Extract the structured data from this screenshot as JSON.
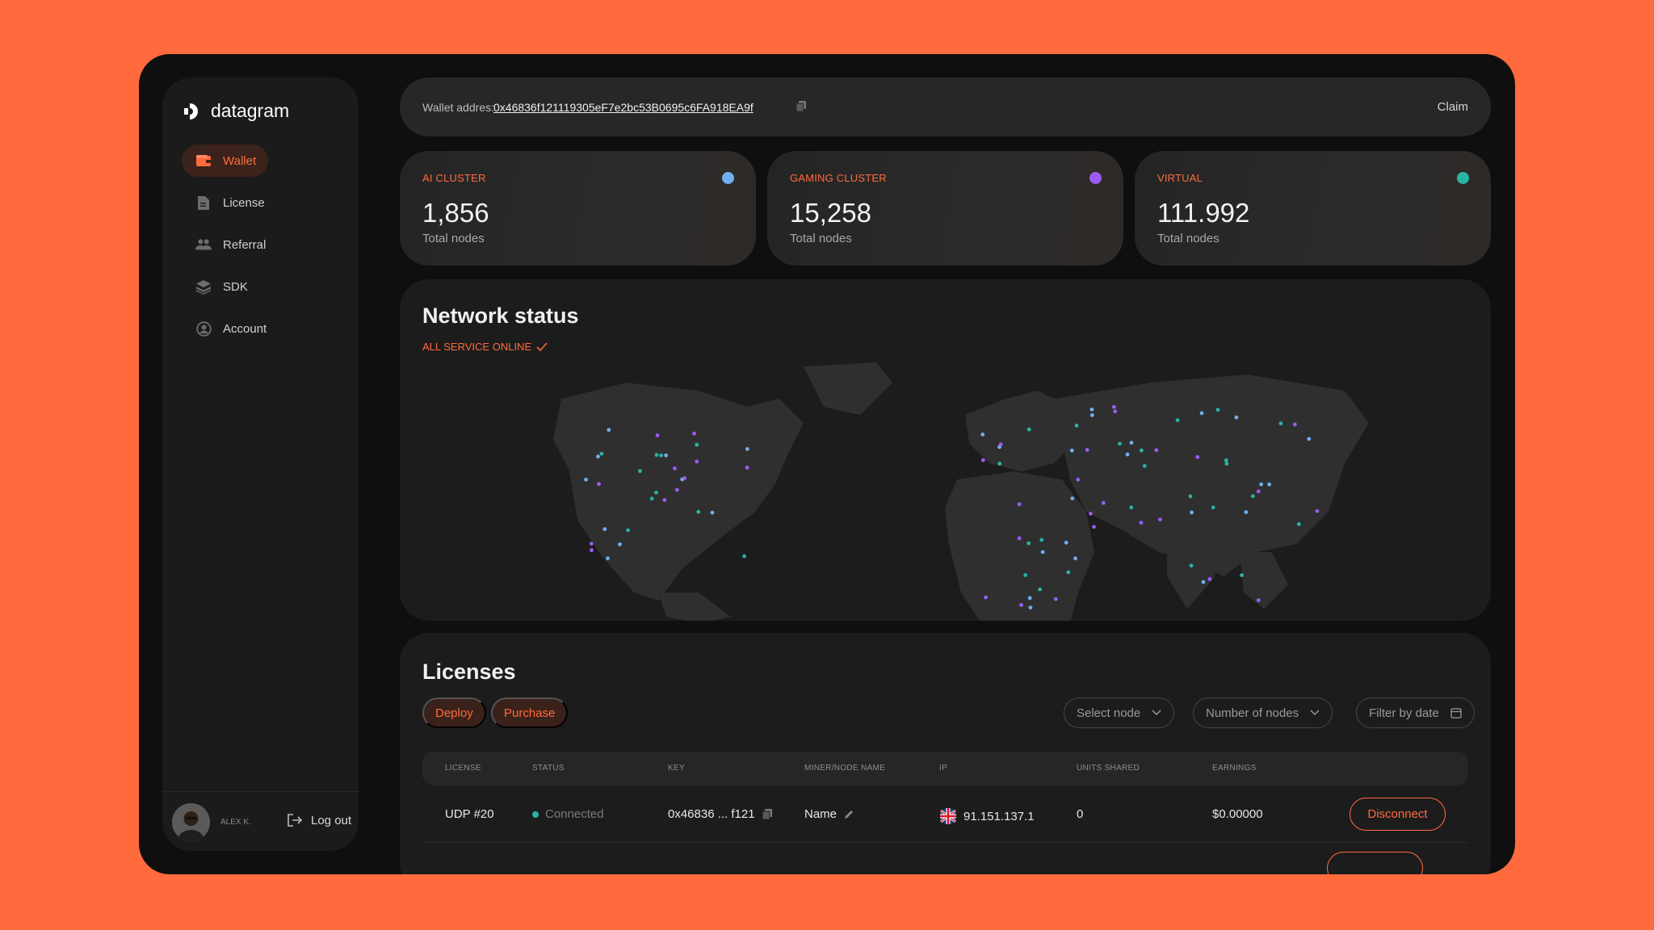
{
  "app": {
    "name": "datagram"
  },
  "sidebar": {
    "items": [
      {
        "label": "Wallet",
        "icon": "wallet-icon",
        "active": true
      },
      {
        "label": "License",
        "icon": "license-icon"
      },
      {
        "label": "Referral",
        "icon": "referral-icon"
      },
      {
        "label": "SDK",
        "icon": "sdk-icon"
      },
      {
        "label": "Account",
        "icon": "account-icon"
      }
    ],
    "user": {
      "name": "ALEX K."
    },
    "logout_label": "Log out"
  },
  "topbar": {
    "wallet_label": "Wallet addres:",
    "wallet_address": "0x46836f121119305eF7e2bc53B0695c6FA918EA9f",
    "claim_label": "Claim"
  },
  "clusters": [
    {
      "label": "AI CLUSTER",
      "value": "1,856",
      "sub": "Total nodes",
      "color": "#6FAFEF"
    },
    {
      "label": "GAMING CLUSTER",
      "value": "15,258",
      "sub": "Total nodes",
      "color": "#9A5CF5"
    },
    {
      "label": "VIRTUAL",
      "value": "111.992",
      "sub": "Total nodes",
      "color": "#2AB3A6"
    }
  ],
  "network": {
    "title": "Network status",
    "status": "ALL SERVICE ONLINE"
  },
  "licenses": {
    "title": "Licenses",
    "deploy_label": "Deploy",
    "purchase_label": "Purchase",
    "filters": [
      "Select node",
      "Number of nodes",
      "Filter by date"
    ],
    "columns": [
      "LICENSE",
      "STATUS",
      "KEY",
      "MINER/NODE NAME",
      "IP",
      "UNITS SHARED",
      "EARNINGS"
    ],
    "rows": [
      {
        "license": "UDP #20",
        "status": "Connected",
        "key": "0x46836 ... f121",
        "name": "Name",
        "ip": "91.151.137.1",
        "units": "0",
        "earnings": "$0.00000",
        "action": "Disconnect"
      }
    ]
  },
  "colors": {
    "accent": "#FF6B3D",
    "connected": "#2AB3A6"
  }
}
